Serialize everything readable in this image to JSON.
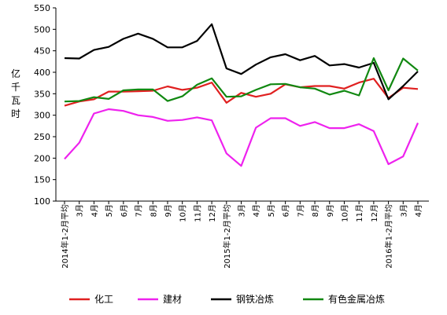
{
  "chart_data": {
    "type": "line",
    "title": "",
    "ylabel": "亿千瓦时",
    "xlabel": "",
    "ylim": [
      100,
      550
    ],
    "yticks": [
      100,
      150,
      200,
      250,
      300,
      350,
      400,
      450,
      500,
      550
    ],
    "grid": false,
    "legend_position": "bottom",
    "x": [
      "2014年1-2月平均",
      "3月",
      "4月",
      "5月",
      "6月",
      "7月",
      "8月",
      "9月",
      "10月",
      "11月",
      "12月",
      "2015年1-2月平均",
      "3月",
      "4月",
      "5月",
      "6月",
      "7月",
      "8月",
      "9月",
      "10月",
      "11月",
      "12月",
      "2016年1-2月平均",
      "3月",
      "4月"
    ],
    "series": [
      {
        "name": "化工",
        "color": "#e02020",
        "values": [
          322,
          332,
          337,
          355,
          355,
          356,
          357,
          367,
          359,
          364,
          376,
          329,
          352,
          343,
          350,
          372,
          365,
          368,
          368,
          362,
          376,
          385,
          340,
          364,
          361
        ]
      },
      {
        "name": "建材",
        "color": "#ee22ee",
        "values": [
          198,
          236,
          304,
          314,
          310,
          300,
          296,
          287,
          289,
          295,
          288,
          211,
          182,
          271,
          293,
          293,
          275,
          284,
          270,
          270,
          279,
          263,
          186,
          204,
          282
        ]
      },
      {
        "name": "钢铁冶炼",
        "color": "#000000",
        "values": [
          433,
          432,
          452,
          459,
          478,
          490,
          478,
          458,
          458,
          473,
          512,
          409,
          396,
          418,
          435,
          442,
          428,
          438,
          416,
          419,
          411,
          422,
          337,
          368,
          402
        ]
      },
      {
        "name": "有色金属冶炼",
        "color": "#118811",
        "values": [
          332,
          333,
          342,
          338,
          358,
          360,
          360,
          333,
          344,
          371,
          386,
          343,
          344,
          359,
          372,
          373,
          365,
          362,
          348,
          357,
          346,
          433,
          358,
          432,
          404
        ]
      }
    ]
  }
}
